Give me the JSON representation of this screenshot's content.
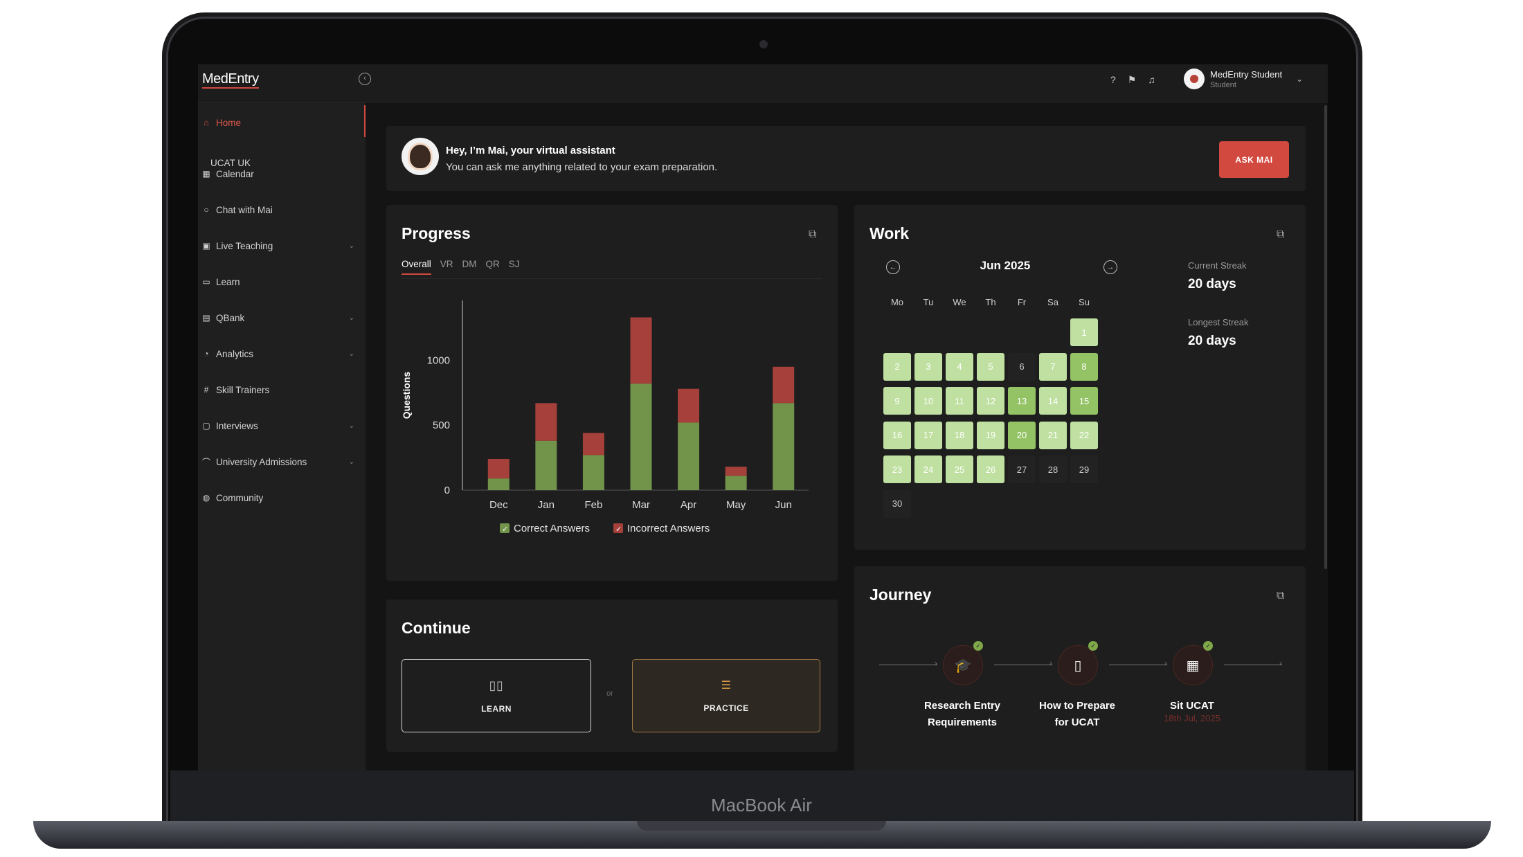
{
  "device": {
    "label": "MacBook Air"
  },
  "app": {
    "logo": "MedEntry",
    "user": {
      "name": "MedEntry Student",
      "role": "Student"
    }
  },
  "sidebar": {
    "section": "UCAT UK",
    "items": [
      {
        "label": "Home",
        "icon": "home-icon",
        "active": true,
        "expandable": false
      },
      {
        "label": "Calendar",
        "icon": "calendar-icon",
        "expandable": false
      },
      {
        "label": "Chat with Mai",
        "icon": "chat-icon",
        "expandable": false
      },
      {
        "label": "Live Teaching",
        "icon": "live-teaching-icon",
        "expandable": true
      },
      {
        "label": "Learn",
        "icon": "book-icon",
        "expandable": false
      },
      {
        "label": "QBank",
        "icon": "qbank-icon",
        "expandable": true
      },
      {
        "label": "Analytics",
        "icon": "analytics-icon",
        "expandable": true
      },
      {
        "label": "Skill Trainers",
        "icon": "skill-trainers-icon",
        "expandable": false
      },
      {
        "label": "Interviews",
        "icon": "interviews-icon",
        "expandable": true
      },
      {
        "label": "University Admissions",
        "icon": "graduation-cap-icon",
        "expandable": true
      },
      {
        "label": "Community",
        "icon": "globe-icon",
        "expandable": false
      }
    ]
  },
  "assistant": {
    "title": "Hey, I’m Mai, your virtual assistant",
    "subtitle": "You can ask me anything related to your exam preparation.",
    "button": "ASK MAI"
  },
  "progress": {
    "title": "Progress",
    "tabs": [
      "Overall",
      "VR",
      "DM",
      "QR",
      "SJ"
    ],
    "active_tab": "Overall"
  },
  "chart_data": {
    "type": "bar",
    "stacked": true,
    "categories": [
      "Dec",
      "Jan",
      "Feb",
      "Mar",
      "Apr",
      "May",
      "Jun"
    ],
    "series": [
      {
        "name": "Correct Answers",
        "color": "#72934a",
        "values": [
          90,
          380,
          270,
          820,
          520,
          110,
          670
        ]
      },
      {
        "name": "Incorrect Answers",
        "color": "#a6403a",
        "values": [
          150,
          290,
          170,
          510,
          260,
          70,
          280
        ]
      }
    ],
    "ylabel": "Questions",
    "yticks": [
      0,
      500,
      1000
    ],
    "ylim": [
      0,
      1450
    ],
    "legend": "bottom"
  },
  "work": {
    "title": "Work",
    "month": "Jun 2025",
    "weekdays": [
      "Mo",
      "Tu",
      "We",
      "Th",
      "Fr",
      "Sa",
      "Su"
    ],
    "first_weekday": 6,
    "days_in_month": 30,
    "light_days": [
      1,
      2,
      3,
      4,
      5,
      7,
      9,
      10,
      11,
      12,
      14,
      16,
      17,
      18,
      19,
      21,
      22,
      23,
      24,
      25,
      26
    ],
    "dark_days": [
      8,
      13,
      15,
      20
    ],
    "colors": {
      "light": "#bfe0a0",
      "dark": "#93c364",
      "empty": "#222222"
    },
    "current_streak_label": "Current Streak",
    "current_streak": "20 days",
    "longest_streak_label": "Longest Streak",
    "longest_streak": "20 days"
  },
  "continue": {
    "title": "Continue",
    "learn": "LEARN",
    "or": "or",
    "practice": "PRACTICE"
  },
  "journey": {
    "title": "Journey",
    "steps": [
      {
        "line1": "Research Entry",
        "line2": "Requirements",
        "icon": "graduation-cap-icon",
        "done": true
      },
      {
        "line1": "How to Prepare",
        "line2": "for UCAT",
        "icon": "book-icon",
        "done": true
      },
      {
        "line1": "Sit UCAT",
        "line2": "",
        "date": "18th Jul, 2025",
        "icon": "calendar-icon",
        "done": true
      }
    ]
  }
}
